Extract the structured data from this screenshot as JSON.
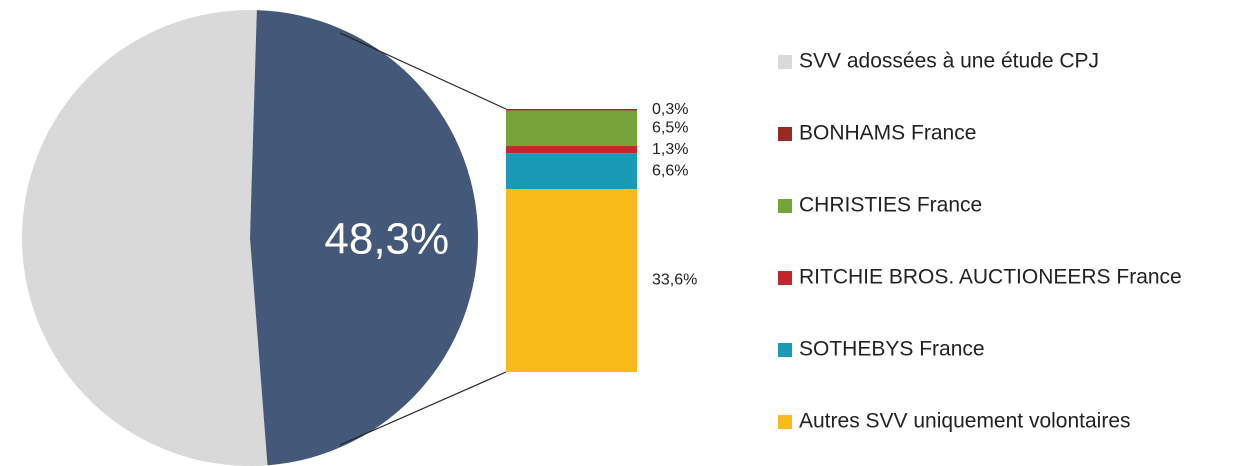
{
  "chart_data": {
    "type": "bar-of-pie",
    "categories": [
      "SVV adossées à une étude CPJ",
      "BONHAMS France",
      "CHRISTIES France",
      "RITCHIE BROS. AUCTIONEERS France",
      "SOTHEBYS France",
      "Autres SVV uniquement volontaires"
    ],
    "values": [
      51.7,
      0.3,
      6.5,
      1.3,
      6.6,
      33.6
    ],
    "value_labels": [
      null,
      "0,3%",
      "6,5%",
      "1,3%",
      "6,6%",
      "33,6%"
    ],
    "colors": [
      "#d9d9d9",
      "#9b2a25",
      "#77a33b",
      "#c0282d",
      "#1b9ab8",
      "#f9bb1a"
    ],
    "split_slice": {
      "value": 48.3,
      "label": "48,3%",
      "color": "#44587a"
    }
  }
}
